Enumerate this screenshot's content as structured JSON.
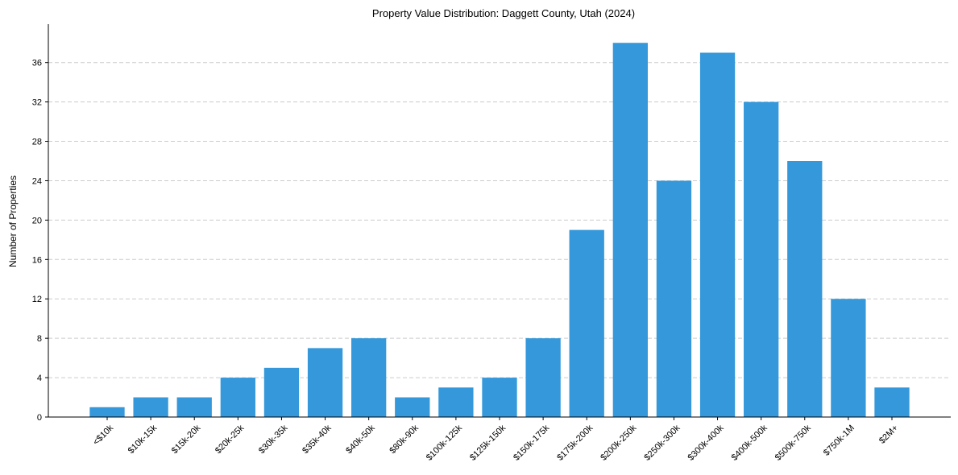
{
  "chart_data": {
    "type": "bar",
    "title": "Property Value Distribution: Daggett County, Utah (2024)",
    "xlabel": "",
    "ylabel": "Number of Properties",
    "categories": [
      "<$10k",
      "$10k-15k",
      "$15k-20k",
      "$20k-25k",
      "$30k-35k",
      "$35k-40k",
      "$40k-50k",
      "$80k-90k",
      "$100k-125k",
      "$125k-150k",
      "$150k-175k",
      "$175k-200k",
      "$200k-250k",
      "$250k-300k",
      "$300k-400k",
      "$400k-500k",
      "$500k-750k",
      "$750k-1M",
      "$2M+"
    ],
    "values": [
      1,
      2,
      2,
      4,
      5,
      7,
      8,
      2,
      3,
      4,
      8,
      19,
      38,
      24,
      37,
      32,
      26,
      12,
      3
    ],
    "yticks": [
      0,
      4,
      8,
      12,
      16,
      20,
      24,
      28,
      32,
      36
    ],
    "ylim": [
      0,
      39.9
    ],
    "grid": "y-dashed",
    "bar_color": "#3498db",
    "grid_color": "#cccccc"
  }
}
